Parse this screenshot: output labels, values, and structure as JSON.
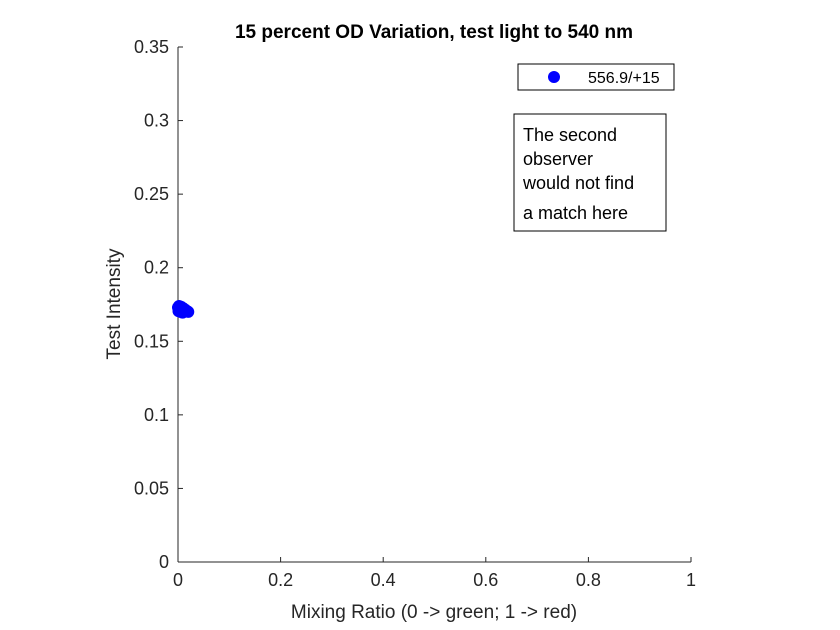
{
  "chart_data": {
    "type": "scatter",
    "title": "15 percent OD Variation, test light to 540 nm",
    "xlabel": "Mixing Ratio (0 -> green; 1 -> red)",
    "ylabel": "Test Intensity",
    "xlim": [
      0,
      1
    ],
    "ylim": [
      0,
      0.35
    ],
    "x_ticks": [
      "0",
      "0.2",
      "0.4",
      "0.6",
      "0.8",
      "1"
    ],
    "y_ticks": [
      "0",
      "0.05",
      "0.1",
      "0.15",
      "0.2",
      "0.25",
      "0.3",
      "0.35"
    ],
    "grid": false,
    "legend_position": "top-right",
    "series": [
      {
        "name": "556.9/+15",
        "color": "#0000ff",
        "marker": "filled-circle",
        "points": [
          {
            "x": 0.0,
            "y": 0.173
          },
          {
            "x": 0.002,
            "y": 0.174
          },
          {
            "x": 0.004,
            "y": 0.1725
          },
          {
            "x": 0.006,
            "y": 0.1735
          },
          {
            "x": 0.008,
            "y": 0.172
          },
          {
            "x": 0.01,
            "y": 0.1725
          },
          {
            "x": 0.012,
            "y": 0.171
          },
          {
            "x": 0.014,
            "y": 0.1715
          },
          {
            "x": 0.016,
            "y": 0.1705
          },
          {
            "x": 0.018,
            "y": 0.1705
          },
          {
            "x": 0.02,
            "y": 0.17
          },
          {
            "x": 0.001,
            "y": 0.1705
          },
          {
            "x": 0.005,
            "y": 0.17
          },
          {
            "x": 0.009,
            "y": 0.1695
          }
        ]
      }
    ],
    "annotation": {
      "lines": [
        "The second",
        "observer",
        "would not find",
        "a match here"
      ]
    }
  }
}
